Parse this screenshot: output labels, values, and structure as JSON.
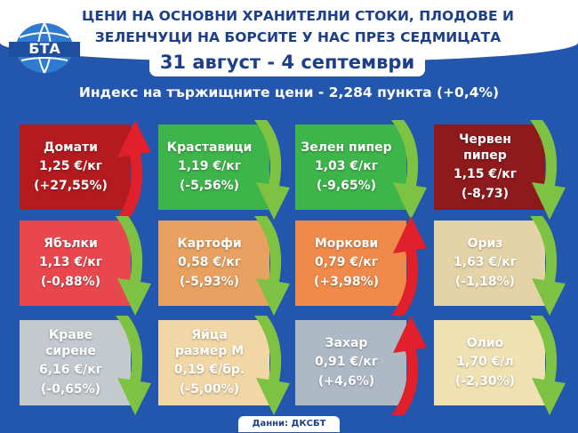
{
  "header": {
    "logo": "БТА",
    "title_lines": [
      "ЦЕНИ НА ОСНОВНИ ХРАНИТЕЛНИ СТОКИ, ПЛОДОВЕ И",
      "ЗЕЛЕНЧУЦИ НА БОРСИТЕ У НАС ПРЕЗ СЕДМИЦАТА"
    ],
    "date": "31 август - 4 септември",
    "index": "Индекс на тържищните цени - 2,284 пункта (+0,4%)"
  },
  "cards": [
    {
      "name": "Домати",
      "price": "1,25 €/кг",
      "change": "(+27,55%)"
    },
    {
      "name": "Краставици",
      "price": "1,19 €/кг",
      "change": "(-5,56%)"
    },
    {
      "name": "Зелен пипер",
      "price": "1,03 €/кг",
      "change": "(-9,65%)"
    },
    {
      "name": "Червен пипер",
      "price": "1,15 €/кг",
      "change": "(-8,73)"
    },
    {
      "name": "Ябълки",
      "price": "1,13 €/кг",
      "change": "(-0,88%)"
    },
    {
      "name": "Картофи",
      "price": "0,58 €/кг",
      "change": "(-5,93%)"
    },
    {
      "name": "Моркови",
      "price": "0,79 €/кг",
      "change": "(+3,98%)"
    },
    {
      "name": "Ориз",
      "price": "1,63 €/кг",
      "change": "(-1,18%)"
    },
    {
      "name": "Краве сирене",
      "price": "6,16 €/кг",
      "change": "(-0,65%)"
    },
    {
      "name": "Яйца размер М",
      "price": "0,19 €/бр.",
      "change": "(-5,00%)"
    },
    {
      "name": "Захар",
      "price": "0,91 €/кг",
      "change": "(+4,6%)"
    },
    {
      "name": "Олио",
      "price": "1,70 €/л",
      "change": "(-2,30%)"
    }
  ],
  "source": "Данни: ДКСБТ"
}
